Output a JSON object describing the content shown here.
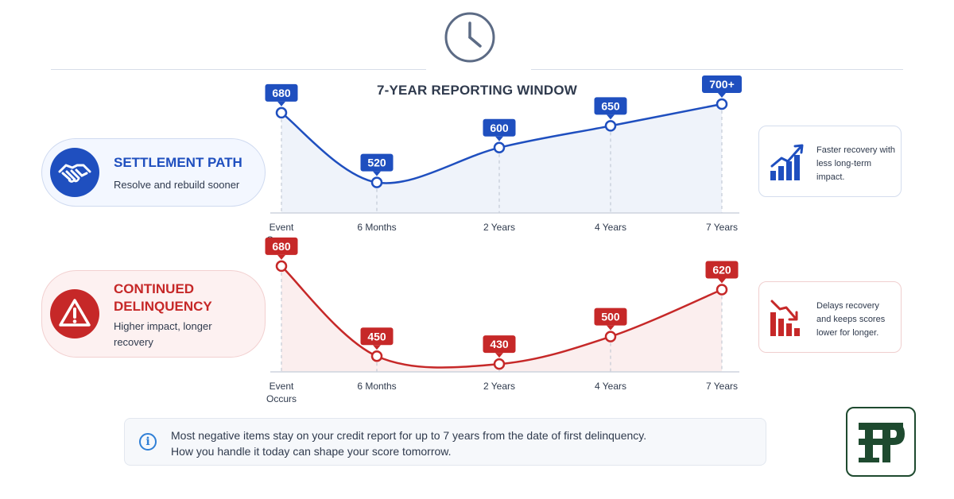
{
  "header": {
    "title": "7-YEAR REPORTING WINDOW"
  },
  "icons": {
    "clock": "clock-icon",
    "settlement": "handshake-icon",
    "delinquency": "warning-icon",
    "settlement_note": "growth-chart-icon",
    "delinquency_note": "decline-chart-icon",
    "info": "info-icon",
    "logo": "brand-logo"
  },
  "colors": {
    "settlement": "#1f4fbf",
    "delinquency": "#c62828",
    "brand": "#1e4a2f"
  },
  "settlement": {
    "title": "SETTLEMENT PATH",
    "subtitle": "Resolve and rebuild sooner",
    "note": "Faster recovery with less long-term impact."
  },
  "delinquency": {
    "title": "CONTINUED DELINQUENCY",
    "subtitle": "Higher impact, longer recovery",
    "note": "Delays recovery and keeps scores lower for longer."
  },
  "info": {
    "icon_glyph": "i",
    "line1": "Most negative items stay on your credit report for up to 7 years from the date of first delinquency.",
    "line2": "How you handle it today can shape your score tomorrow."
  },
  "chart_data": [
    {
      "type": "line",
      "categories": [
        "Event Occurs",
        "6 Months",
        "2 Years",
        "4 Years",
        "7 Years"
      ],
      "x_months": [
        0,
        6,
        24,
        48,
        84
      ],
      "series": [
        {
          "name": "SETTLEMENT PATH",
          "values": [
            680,
            520,
            600,
            650,
            700
          ],
          "labels": [
            "680",
            "520",
            "600",
            "650",
            "700+"
          ]
        }
      ],
      "ylim": [
        450,
        720
      ],
      "grid": "vertical-dashed",
      "color": "#1f4fbf"
    },
    {
      "type": "line",
      "categories": [
        "Event Occurs",
        "6 Months",
        "2 Years",
        "4 Years",
        "7 Years"
      ],
      "x_months": [
        0,
        6,
        24,
        48,
        84
      ],
      "series": [
        {
          "name": "CONTINUED DELINQUENCY",
          "values": [
            680,
            450,
            430,
            500,
            620
          ],
          "labels": [
            "680",
            "450",
            "430",
            "500",
            "620"
          ]
        }
      ],
      "ylim": [
        410,
        690
      ],
      "grid": "vertical-dashed",
      "color": "#c62828"
    }
  ]
}
